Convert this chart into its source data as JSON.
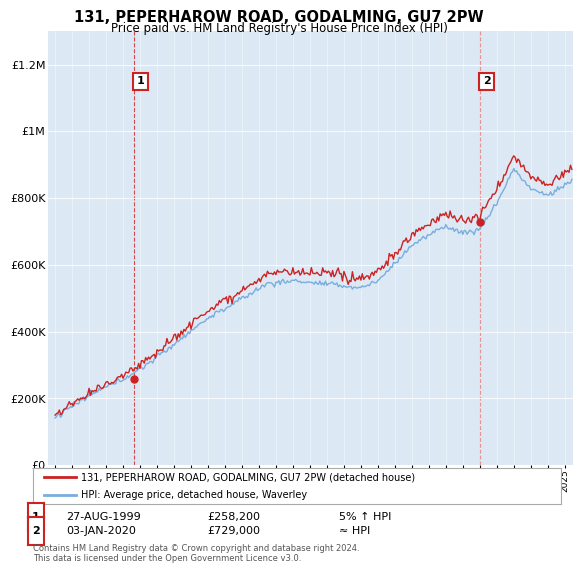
{
  "title": "131, PEPERHAROW ROAD, GODALMING, GU7 2PW",
  "subtitle": "Price paid vs. HM Land Registry's House Price Index (HPI)",
  "ylabel_ticks": [
    "£0",
    "£200K",
    "£400K",
    "£600K",
    "£800K",
    "£1M",
    "£1.2M"
  ],
  "ytick_values": [
    0,
    200000,
    400000,
    600000,
    800000,
    1000000,
    1200000
  ],
  "ylim": [
    0,
    1300000
  ],
  "xlim_start": 1994.6,
  "xlim_end": 2025.5,
  "line_color_price": "#cc2222",
  "line_color_hpi": "#7aaddd",
  "sale1_x": 1999.65,
  "sale1_y": 258200,
  "sale2_x": 2020.02,
  "sale2_y": 729000,
  "legend_label1": "131, PEPERHAROW ROAD, GODALMING, GU7 2PW (detached house)",
  "legend_label2": "HPI: Average price, detached house, Waverley",
  "table_row1": [
    "1",
    "27-AUG-1999",
    "£258,200",
    "5% ↑ HPI"
  ],
  "table_row2": [
    "2",
    "03-JAN-2020",
    "£729,000",
    "≈ HPI"
  ],
  "footer": "Contains HM Land Registry data © Crown copyright and database right 2024.\nThis data is licensed under the Open Government Licence v3.0.",
  "background_color": "#ffffff",
  "plot_bg_color": "#dce9f5"
}
